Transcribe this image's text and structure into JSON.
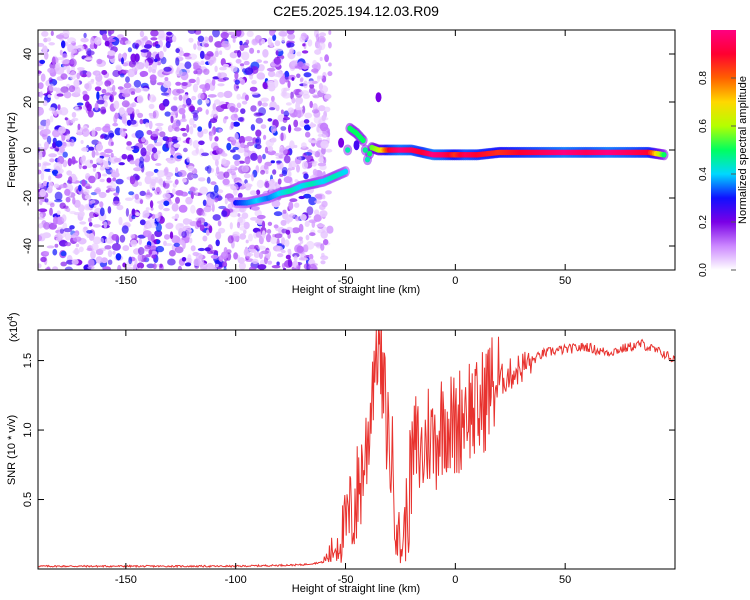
{
  "title": "C2E5.2025.194.12.03.R09",
  "chart_data": [
    {
      "type": "heatmap",
      "xlabel": "Height of straight line (km)",
      "ylabel": "Frequency (Hz)",
      "xlim": [
        -190,
        100
      ],
      "ylim": [
        -50,
        50
      ],
      "xticks": [
        -150,
        -100,
        -50,
        0,
        50
      ],
      "yticks": [
        -40,
        -20,
        0,
        20,
        40
      ],
      "colorbar": {
        "label": "Normalized spectral amplitude",
        "range": [
          0,
          1
        ],
        "ticks": [
          "0.0",
          "0.2",
          "0.4",
          "0.6",
          "0.8"
        ],
        "colors": [
          "#ffffff",
          "#cc88ff",
          "#7a00e6",
          "#1010ff",
          "#00d8ff",
          "#00ff60",
          "#b4ff00",
          "#ffd800",
          "#ff6000",
          "#ff0030",
          "#ff0080"
        ]
      },
      "noise_region": {
        "x_from": -190,
        "x_to": -65,
        "level": "low (0.0-0.3)"
      },
      "ridge": [
        [
          -100,
          -22,
          0.3
        ],
        [
          -95,
          -22,
          0.35
        ],
        [
          -90,
          -21,
          0.4
        ],
        [
          -85,
          -20,
          0.35
        ],
        [
          -80,
          -18,
          0.4
        ],
        [
          -75,
          -17,
          0.45
        ],
        [
          -70,
          -15,
          0.4
        ],
        [
          -65,
          -14,
          0.45
        ],
        [
          -60,
          -13,
          0.4
        ],
        [
          -55,
          -11,
          0.45
        ],
        [
          -50,
          -9,
          0.4
        ],
        [
          -48,
          9,
          0.5
        ],
        [
          -45,
          7,
          0.5
        ],
        [
          -42,
          4,
          0.5
        ],
        [
          -40,
          -4,
          0.45
        ],
        [
          -38,
          1,
          0.55
        ],
        [
          -35,
          0,
          0.6
        ],
        [
          -30,
          0,
          0.9
        ],
        [
          -25,
          0,
          1.0
        ],
        [
          -20,
          0,
          0.95
        ],
        [
          -15,
          -1,
          0.9
        ],
        [
          -10,
          -2,
          1.0
        ],
        [
          -5,
          -2,
          0.95
        ],
        [
          0,
          -2,
          0.85
        ],
        [
          5,
          -2,
          0.95
        ],
        [
          10,
          -2,
          0.9
        ],
        [
          20,
          -1,
          0.85
        ],
        [
          30,
          -1,
          0.9
        ],
        [
          40,
          -1,
          0.95
        ],
        [
          50,
          -1,
          1.0
        ],
        [
          60,
          -1,
          0.95
        ],
        [
          70,
          -1,
          1.0
        ],
        [
          80,
          -1,
          0.95
        ],
        [
          88,
          -1,
          0.9
        ],
        [
          95,
          -2,
          0.5
        ]
      ],
      "features": [
        [
          -35,
          22,
          0.2
        ],
        [
          -52,
          3,
          0.2
        ],
        [
          -45,
          2,
          0.25
        ]
      ]
    },
    {
      "type": "line",
      "xlabel": "Height of straight line (km)",
      "ylabel": "SNR (10 * v/v)",
      "yscale_label": "(x10",
      "yscale_exp": "4",
      "yscale_close": ")",
      "xlim": [
        -190,
        100
      ],
      "ylim": [
        0,
        1.72
      ],
      "xticks": [
        -150,
        -100,
        -50,
        0,
        50
      ],
      "yticks": [
        "0.5",
        "1.0",
        "1.5"
      ],
      "color": "#e8322e",
      "series": [
        {
          "x": [
            -190,
            -150,
            -100,
            -70,
            -60,
            -55,
            -50,
            -45,
            -40,
            -37,
            -35,
            -33,
            -30,
            -27,
            -25,
            -22,
            -20,
            -18,
            -15,
            -12,
            -10,
            -5,
            0,
            5,
            10,
            15,
            20,
            25,
            30,
            35,
            40,
            45,
            50,
            55,
            60,
            65,
            70,
            75,
            80,
            85,
            90,
            95,
            100
          ],
          "y": [
            0.02,
            0.02,
            0.02,
            0.03,
            0.05,
            0.15,
            0.3,
            0.5,
            0.9,
            1.5,
            1.7,
            1.3,
            0.9,
            0.5,
            0.1,
            0.4,
            0.7,
            0.9,
            0.8,
            1.0,
            0.9,
            1.1,
            1.0,
            1.2,
            1.1,
            1.3,
            1.35,
            1.4,
            1.45,
            1.5,
            1.55,
            1.57,
            1.58,
            1.59,
            1.6,
            1.57,
            1.56,
            1.58,
            1.6,
            1.62,
            1.58,
            1.55,
            1.5
          ]
        }
      ]
    }
  ]
}
